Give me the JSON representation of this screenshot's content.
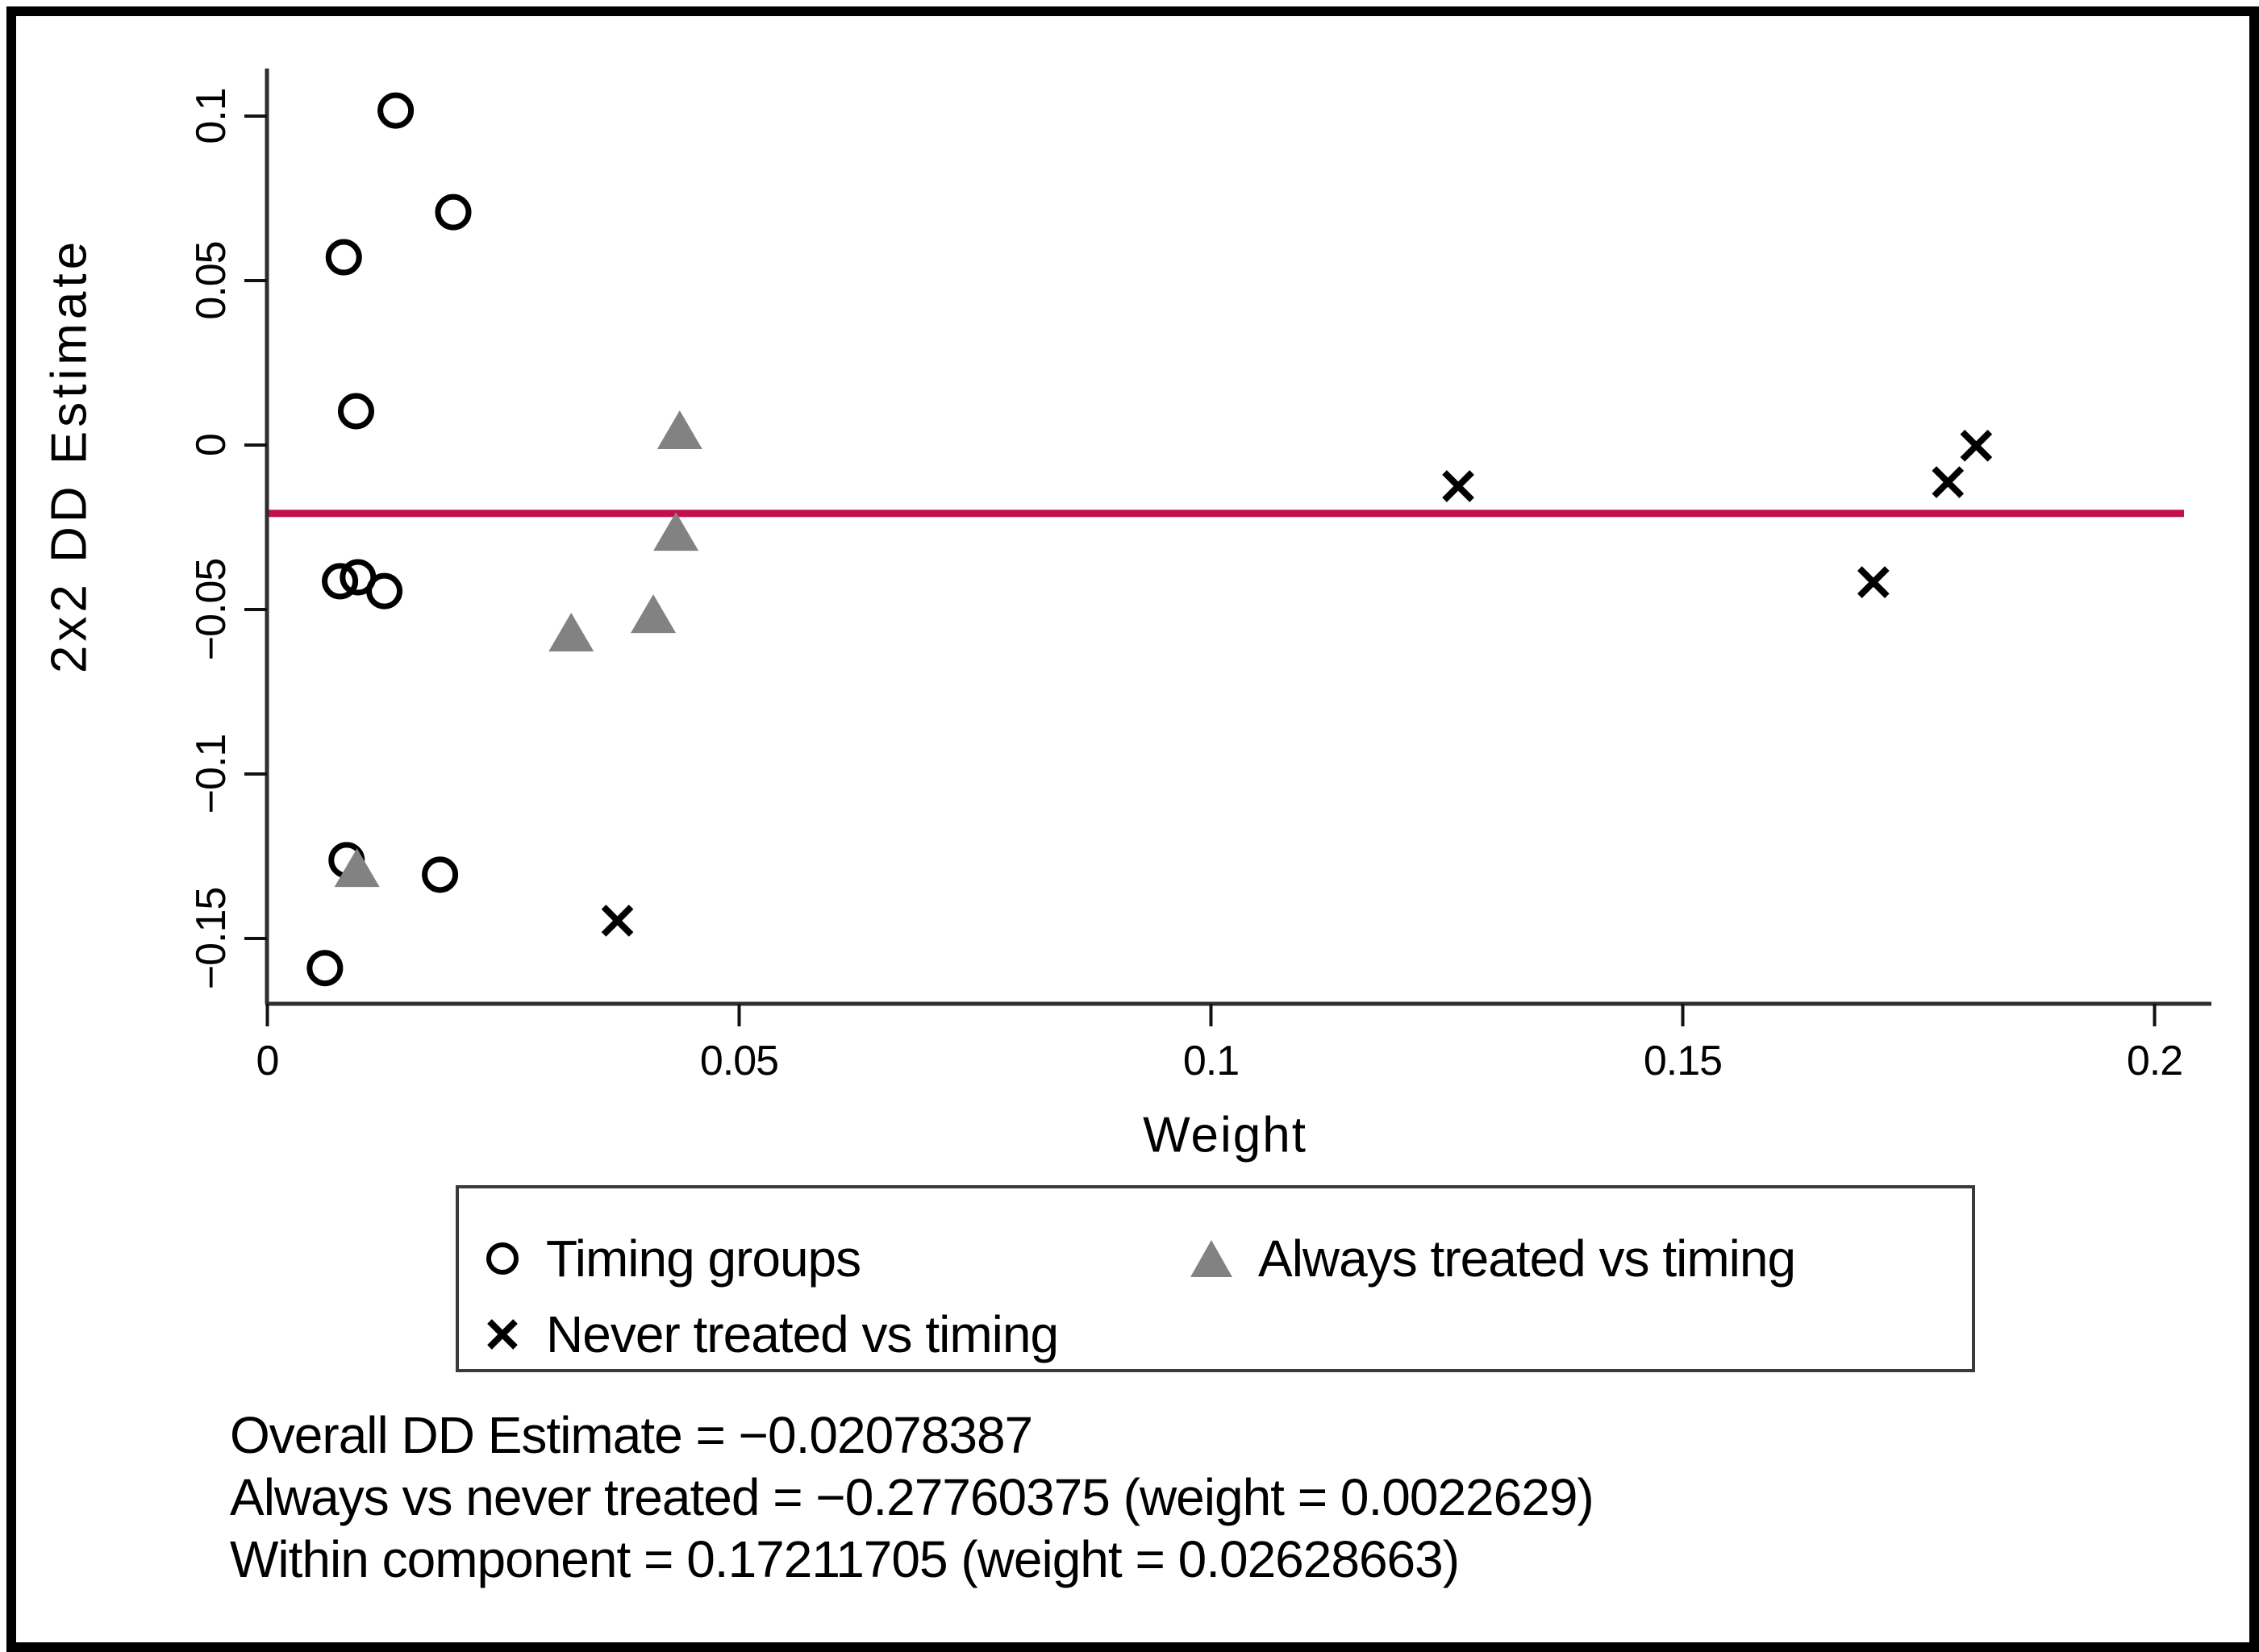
{
  "chart_data": {
    "type": "scatter",
    "title": "",
    "xlabel": "Weight",
    "ylabel": "2x2 DD Estimate",
    "xlim": [
      0,
      0.203
    ],
    "ylim": [
      -0.169,
      0.114
    ],
    "grid": false,
    "xticks": [
      0,
      0.05,
      0.1,
      0.15,
      0.2
    ],
    "xtick_labels": [
      "0",
      "0.05",
      "0.1",
      "0.15",
      "0.2"
    ],
    "yticks": [
      0.1,
      0.05,
      0,
      -0.05,
      -0.1,
      -0.15
    ],
    "ytick_labels": [
      "0.1",
      "0.05",
      "0",
      "−0.05",
      "−0.1",
      "−0.15"
    ],
    "ref_line_y": -0.02078387,
    "series": [
      {
        "name": "Timing groups",
        "marker": "circle",
        "color": "#000000",
        "points": [
          [
            0.0136,
            0.1017
          ],
          [
            0.0197,
            0.0708
          ],
          [
            0.0081,
            0.0571
          ],
          [
            0.0094,
            0.0103
          ],
          [
            0.0077,
            -0.0414
          ],
          [
            0.0096,
            -0.0402
          ],
          [
            0.0124,
            -0.0444
          ],
          [
            0.0084,
            -0.1262
          ],
          [
            0.0183,
            -0.1306
          ],
          [
            0.0061,
            -0.159
          ]
        ]
      },
      {
        "name": "Always treated vs timing",
        "marker": "triangle",
        "color": "#828282",
        "points": [
          [
            0.0437,
            0.0044
          ],
          [
            0.0433,
            -0.0265
          ],
          [
            0.0409,
            -0.0515
          ],
          [
            0.0322,
            -0.0571
          ],
          [
            0.0095,
            -0.1287
          ]
        ]
      },
      {
        "name": "Never treated vs timing",
        "marker": "x",
        "color": "#000000",
        "points": [
          [
            0.1262,
            -0.0125
          ],
          [
            0.1811,
            -0.0002
          ],
          [
            0.1781,
            -0.0113
          ],
          [
            0.1702,
            -0.0417
          ],
          [
            0.0371,
            -0.1446
          ]
        ]
      }
    ],
    "legend": {
      "position": "below-plot",
      "entries": [
        "Timing groups",
        "Always treated vs timing",
        "Never treated vs timing"
      ]
    },
    "annotations": [
      "Overall DD Estimate = −0.02078387",
      "Always vs never treated = −0.27760375 (weight = 0.0022629)",
      "Within component = 0.17211705 (weight = 0.02628663)"
    ],
    "colors": {
      "ref_line": "#c2104c",
      "triangle_fill": "#828282",
      "marker_stroke": "#000000",
      "axis_line": "#2e2e2e",
      "tick": "#111111",
      "legend_border": "#3a3a3a"
    }
  }
}
